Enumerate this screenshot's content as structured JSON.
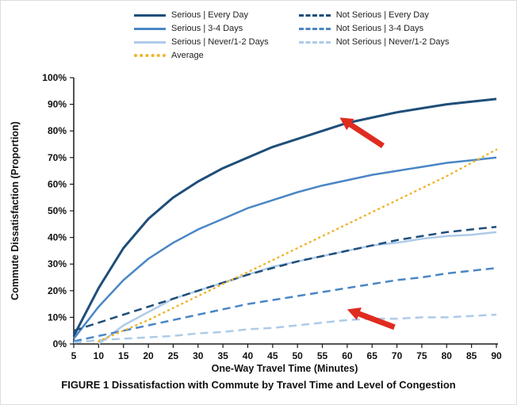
{
  "figure": {
    "caption": "FIGURE 1 Dissatisfaction with Commute by Travel Time and Level of Congestion"
  },
  "chart_data": {
    "type": "line",
    "title": "",
    "xlabel": "One-Way Travel Time (Minutes)",
    "ylabel": "Commute Dissatisfaction (Proportion)",
    "xlim": [
      5,
      90
    ],
    "ylim": [
      0,
      100
    ],
    "xticks": [
      5,
      10,
      15,
      20,
      25,
      30,
      35,
      40,
      45,
      50,
      55,
      60,
      65,
      70,
      75,
      80,
      85,
      90
    ],
    "yticks": [
      0,
      10,
      20,
      30,
      40,
      50,
      60,
      70,
      80,
      90,
      100
    ],
    "ytick_format": "percent",
    "grid": false,
    "legend_position": "top",
    "x": [
      5,
      10,
      15,
      20,
      25,
      30,
      35,
      40,
      45,
      50,
      55,
      60,
      65,
      70,
      75,
      80,
      85,
      90
    ],
    "series": [
      {
        "name": "Serious | Every Day",
        "color": "#1f4e79",
        "style": "solid",
        "values": [
          3,
          21,
          36,
          47,
          55,
          61,
          66,
          70,
          74,
          77,
          80,
          83,
          85,
          87,
          88.5,
          90,
          91,
          92
        ]
      },
      {
        "name": "Serious | 3-4 Days",
        "color": "#4a86c5",
        "style": "solid",
        "values": [
          2,
          14,
          24,
          32,
          38,
          43,
          47,
          51,
          54,
          57,
          59.5,
          61.5,
          63.5,
          65,
          66.5,
          68,
          69,
          70
        ]
      },
      {
        "name": "Serious | Never/1-2 Days",
        "color": "#aecbe8",
        "style": "solid",
        "values": [
          null,
          0,
          7,
          12,
          17,
          20,
          23,
          26,
          29,
          31,
          33,
          35,
          37,
          38,
          39.5,
          40.5,
          41,
          42
        ]
      },
      {
        "name": "Not Serious | Every Day",
        "color": "#1f4e79",
        "style": "dashed",
        "values": [
          5,
          8,
          11,
          14,
          17,
          20,
          23,
          26,
          28.5,
          31,
          33,
          35,
          37,
          39,
          40.5,
          42,
          43,
          44
        ]
      },
      {
        "name": "Not Serious | 3-4 Days",
        "color": "#4a86c5",
        "style": "dashed",
        "values": [
          1,
          3,
          5,
          7,
          9,
          11,
          13,
          15,
          16.5,
          18,
          19.5,
          21,
          22.5,
          24,
          25,
          26.5,
          27.5,
          28.5
        ]
      },
      {
        "name": "Not Serious | Never/1-2 Days",
        "color": "#aecbe8",
        "style": "dashed",
        "values": [
          0.5,
          1.5,
          2,
          2.5,
          3,
          4,
          4.5,
          5.5,
          6,
          7,
          8,
          9,
          9.5,
          9.5,
          10,
          10,
          10.5,
          11
        ]
      },
      {
        "name": "Average",
        "color": "#f0b429",
        "style": "dotted",
        "values": [
          null,
          1,
          5,
          9,
          13.5,
          18,
          22.5,
          27,
          31.5,
          36,
          40.5,
          45,
          49.5,
          54,
          58.5,
          63,
          68,
          73
        ]
      }
    ],
    "annotations": [
      {
        "type": "arrow",
        "color": "#e02b20",
        "from": [
          67.2,
          74.4
        ],
        "to": [
          58.5,
          85
        ]
      },
      {
        "type": "arrow",
        "color": "#e02b20",
        "from": [
          69.5,
          6.3
        ],
        "to": [
          60,
          13
        ]
      }
    ]
  }
}
